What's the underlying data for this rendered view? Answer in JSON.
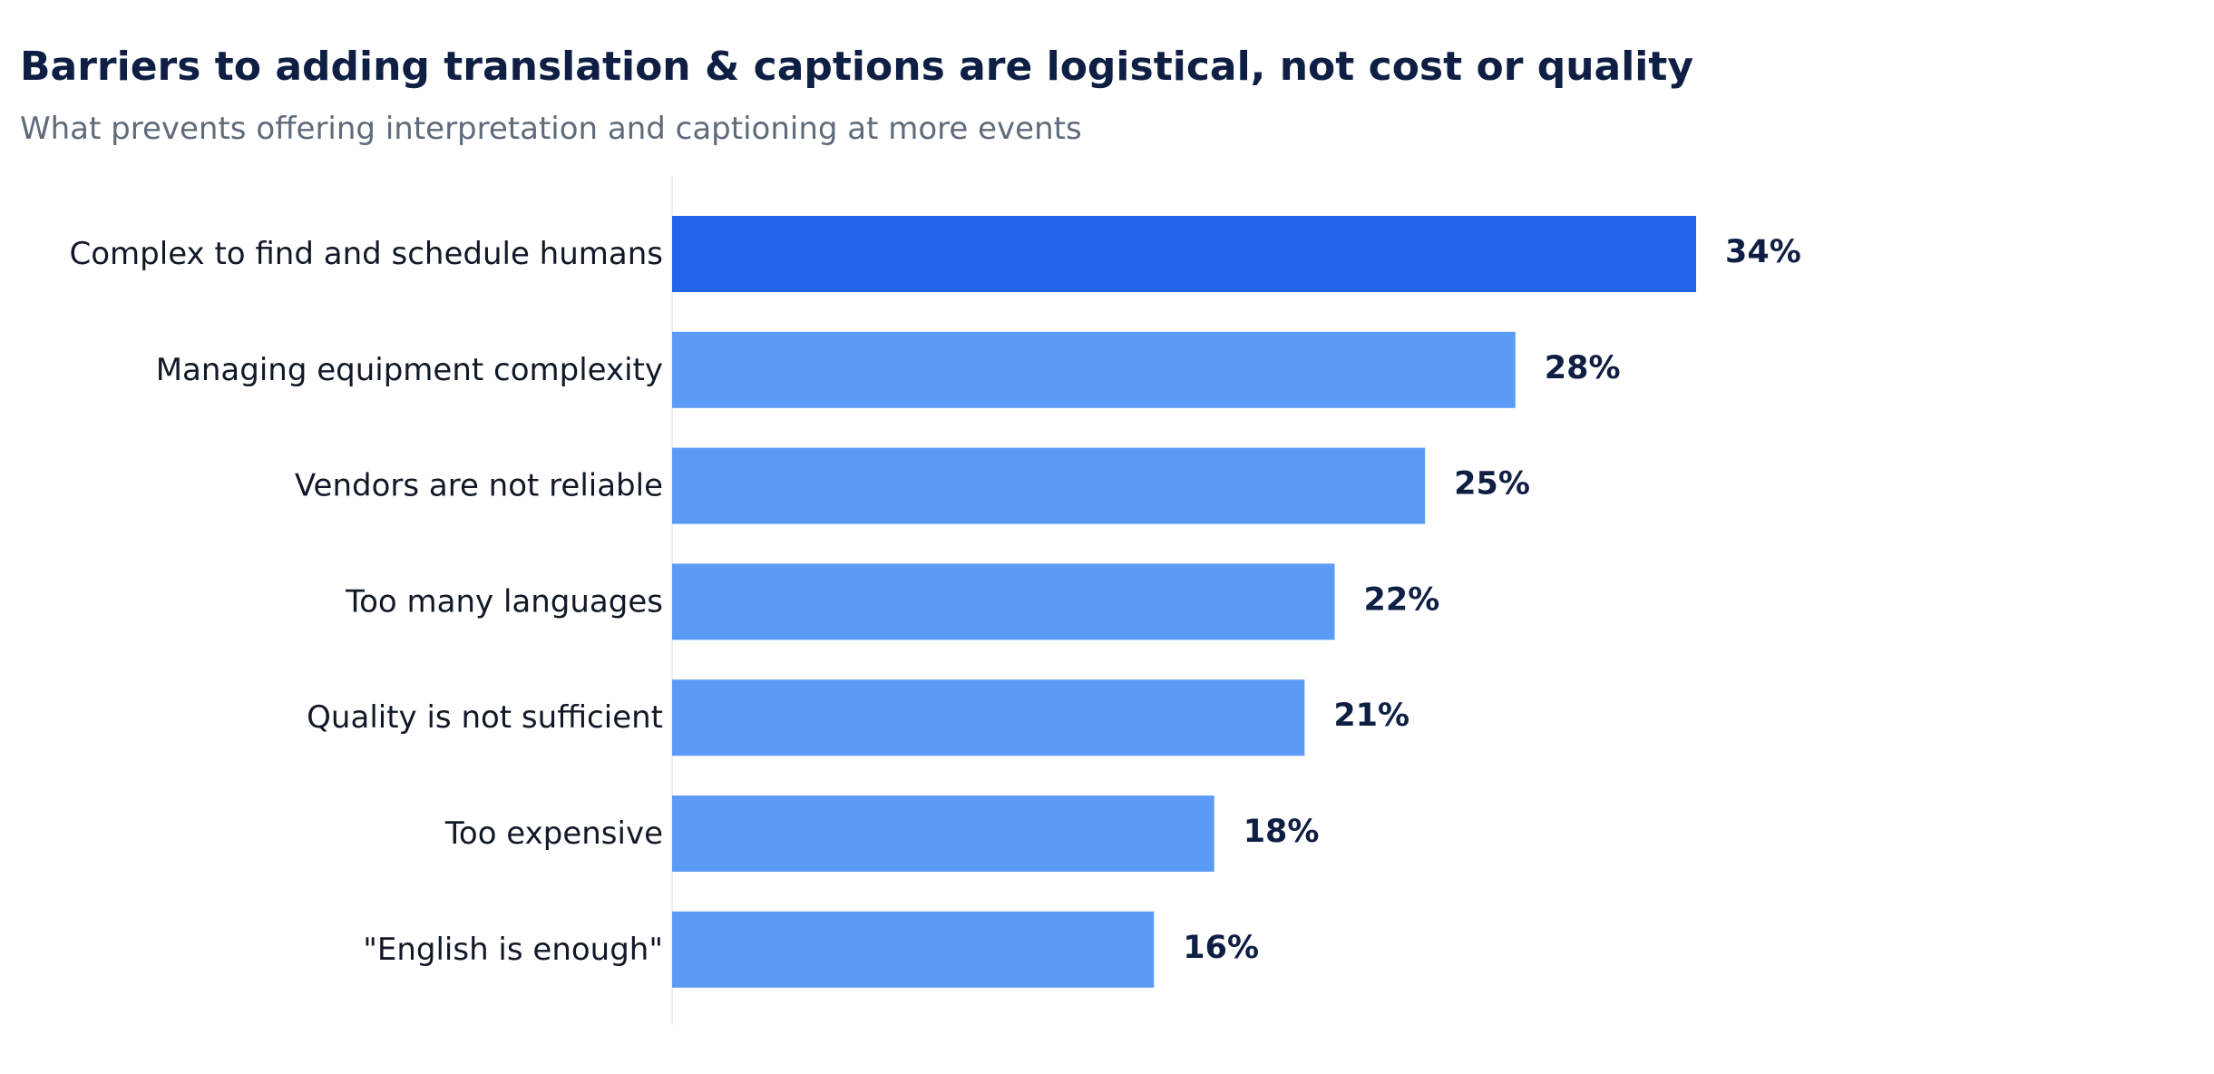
{
  "title": "Barriers to adding translation & captions are logistical, not cost or quality",
  "subtitle": "What prevents offering interpretation and captioning at more events",
  "colors": {
    "highlight": "#2563eb",
    "bar": "#5b9bf5",
    "category_text": "#111827",
    "value_text": "#0f1f44",
    "axis_line": "#e5e7eb"
  },
  "chart_data": {
    "type": "bar",
    "orientation": "horizontal",
    "title": "Barriers to adding translation & captions are logistical, not cost or quality",
    "subtitle": "What prevents offering interpretation and captioning at more events",
    "categories": [
      "Complex to find and schedule humans",
      "Managing equipment complexity",
      "Vendors are not reliable",
      "Too many languages",
      "Quality is not sufficient",
      "Too expensive",
      "\"English is enough\""
    ],
    "values": [
      34,
      28,
      25,
      22,
      21,
      18,
      16
    ],
    "value_labels": [
      "34%",
      "28%",
      "25%",
      "22%",
      "21%",
      "18%",
      "16%"
    ],
    "highlighted_index": 0,
    "xlim": [
      0,
      50
    ],
    "unit": "%",
    "grid": false,
    "legend": "none"
  }
}
